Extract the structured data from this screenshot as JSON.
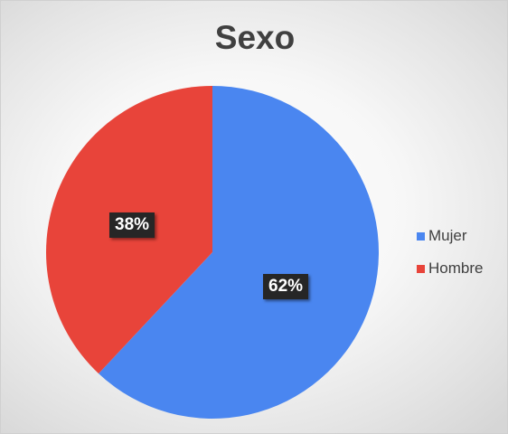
{
  "chart_data": {
    "type": "pie",
    "title": "Sexo",
    "categories": [
      "Mujer",
      "Hombre"
    ],
    "values": [
      62,
      38
    ],
    "data_labels": [
      "62%",
      "38%"
    ],
    "colors": [
      "#4a86f0",
      "#e8443a"
    ],
    "legend_placement": "right"
  },
  "legend": {
    "items": [
      {
        "label": "Mujer",
        "color": "#4a86f0"
      },
      {
        "label": "Hombre",
        "color": "#e8443a"
      }
    ]
  }
}
